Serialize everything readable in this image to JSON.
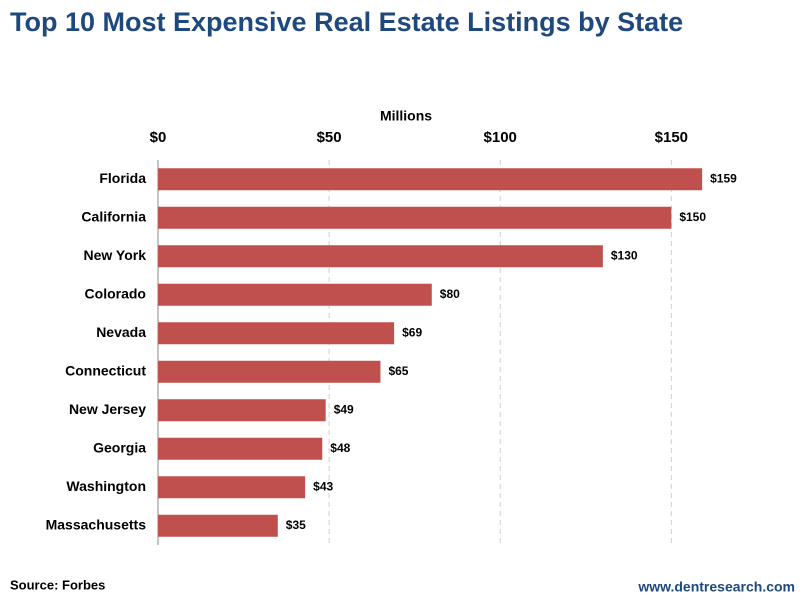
{
  "chart_data": {
    "type": "bar",
    "orientation": "horizontal",
    "title": "Top 10 Most Expensive Real Estate Listings by State",
    "x_label": "Millions",
    "categories": [
      "Florida",
      "California",
      "New York",
      "Colorado",
      "Nevada",
      "Connecticut",
      "New Jersey",
      "Georgia",
      "Washington",
      "Massachusetts"
    ],
    "values": [
      159,
      150,
      130,
      80,
      69,
      65,
      49,
      48,
      43,
      35
    ],
    "value_labels": [
      "$159",
      "$150",
      "$130",
      "$80",
      "$69",
      "$65",
      "$49",
      "$48",
      "$43",
      "$35"
    ],
    "color": "#c0504d",
    "xlim": [
      0,
      180
    ],
    "xticks": [
      {
        "value": 0,
        "label": "$0"
      },
      {
        "value": 50,
        "label": "$50"
      },
      {
        "value": 100,
        "label": "$100"
      },
      {
        "value": 150,
        "label": "$150"
      }
    ],
    "grid": true,
    "source": "Source: Forbes",
    "credit": "www.dentresearch.com"
  }
}
